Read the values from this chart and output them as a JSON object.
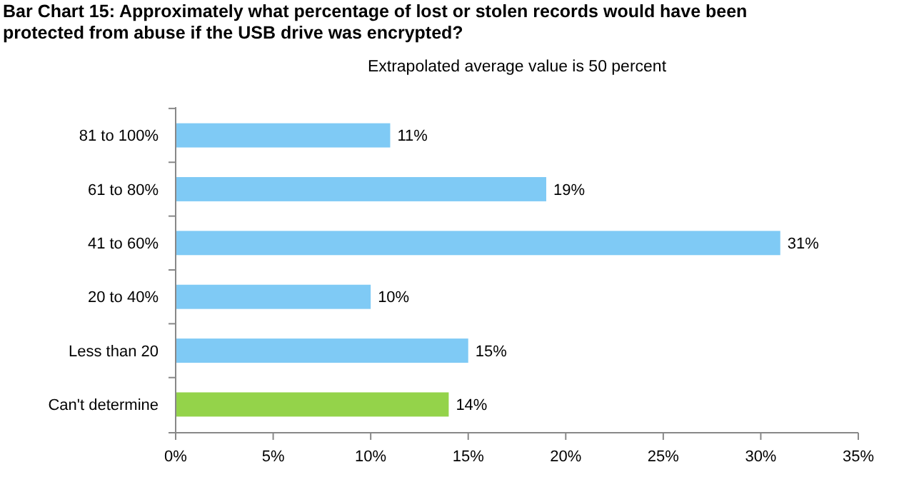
{
  "chart_data": {
    "type": "bar",
    "orientation": "horizontal",
    "title": "Bar Chart 15: Approximately what percentage of lost or stolen records would have been protected from abuse if the USB drive was encrypted?",
    "subtitle": "Extrapolated average value is 50 percent",
    "categories": [
      "81 to 100%",
      "61 to 80%",
      "41 to 60%",
      "20 to 40%",
      "Less than 20",
      "Can't determine"
    ],
    "values": [
      11,
      19,
      31,
      10,
      15,
      14
    ],
    "colors": [
      "#7fcaf5",
      "#7fcaf5",
      "#7fcaf5",
      "#7fcaf5",
      "#7fcaf5",
      "#94d34a"
    ],
    "value_labels": [
      "11%",
      "19%",
      "31%",
      "10%",
      "15%",
      "14%"
    ],
    "xlim": [
      0,
      35
    ],
    "xticks": [
      {
        "value": 0,
        "label": "0%"
      },
      {
        "value": 5,
        "label": "5%"
      },
      {
        "value": 10,
        "label": "10%"
      },
      {
        "value": 15,
        "label": "15%"
      },
      {
        "value": 20,
        "label": "20%"
      },
      {
        "value": 25,
        "label": "25%"
      },
      {
        "value": 30,
        "label": "30%"
      },
      {
        "value": 35,
        "label": "35%"
      }
    ],
    "grid": false
  }
}
